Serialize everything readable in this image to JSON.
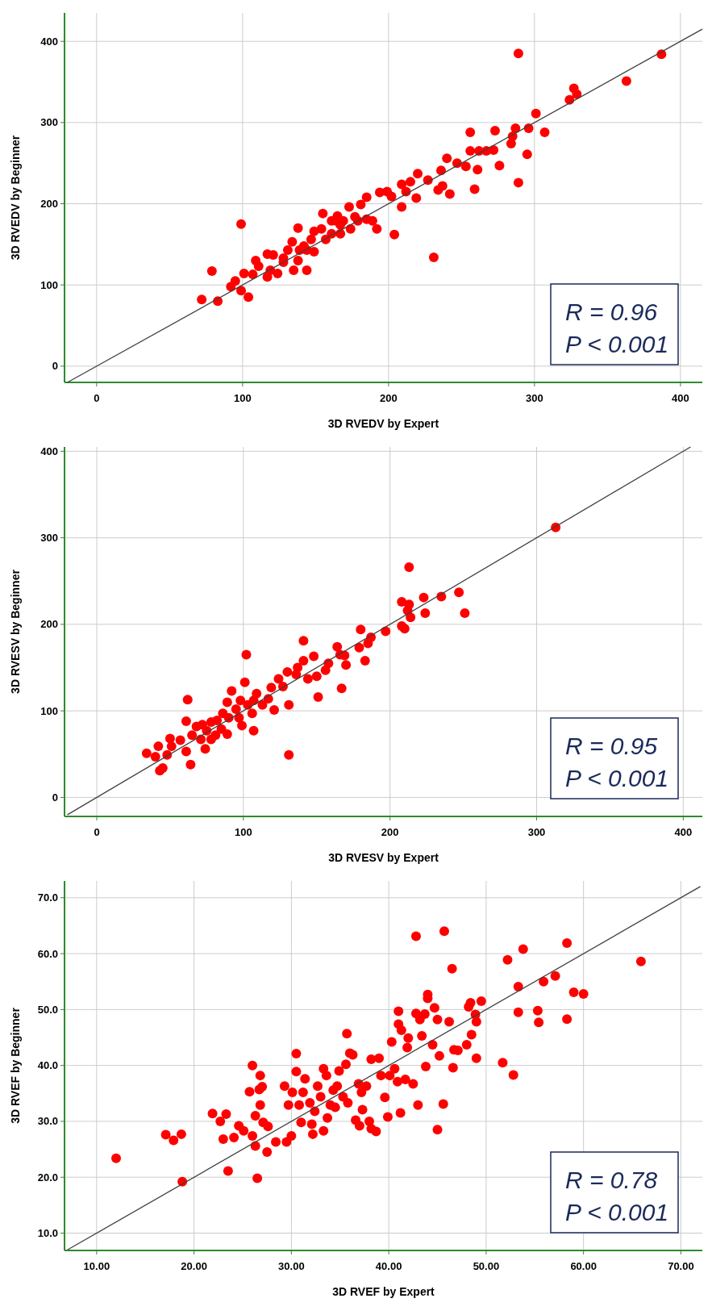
{
  "chart_data": [
    {
      "type": "scatter",
      "xlabel": "3D RVEDV by Expert",
      "ylabel": "3D RVEDV by Beginner",
      "xlim": [
        -22,
        415
      ],
      "ylim": [
        -20,
        435
      ],
      "xticks": [
        0,
        100,
        200,
        300,
        400
      ],
      "yticks": [
        0,
        100,
        200,
        300,
        400
      ],
      "grid": true,
      "marker": "circle",
      "annotations": [
        "R = 0.96",
        "P < 0.001"
      ],
      "series": [
        {
          "type": "scatter",
          "color": "#ff0000",
          "x": [
            72,
            79,
            83,
            92,
            95,
            99,
            99,
            101,
            104,
            107,
            109,
            111,
            117,
            117,
            121,
            119,
            124,
            128,
            131,
            134,
            135,
            138,
            138,
            139,
            142,
            144,
            147,
            149,
            149,
            154,
            155,
            157,
            161,
            164,
            165,
            167,
            169,
            173,
            174,
            177,
            181,
            185,
            185,
            189,
            192,
            194,
            199,
            202,
            204,
            209,
            209,
            212,
            215,
            219,
            220,
            227,
            231,
            234,
            236,
            237,
            242,
            240,
            247,
            253,
            256,
            256,
            259,
            261,
            262,
            267,
            272,
            273,
            276,
            284,
            285,
            287,
            289,
            289,
            295,
            296,
            301,
            307,
            324,
            327,
            329,
            363,
            387,
            128,
            161,
            179,
            144,
            167
          ],
          "values": [
            82,
            117,
            80,
            98,
            105,
            93,
            175,
            114,
            85,
            113,
            130,
            123,
            138,
            110,
            137,
            118,
            114,
            133,
            143,
            153,
            118,
            130,
            170,
            143,
            148,
            118,
            156,
            141,
            166,
            169,
            188,
            156,
            163,
            179,
            185,
            174,
            179,
            196,
            169,
            184,
            199,
            208,
            181,
            179,
            169,
            214,
            215,
            209,
            162,
            196,
            224,
            215,
            227,
            207,
            237,
            229,
            134,
            217,
            241,
            222,
            212,
            256,
            250,
            246,
            288,
            265,
            218,
            242,
            265,
            265,
            266,
            290,
            247,
            274,
            283,
            293,
            385,
            226,
            261,
            293,
            311,
            288,
            328,
            342,
            335,
            351,
            384,
            128,
            179,
            179,
            143,
            163
          ]
        },
        {
          "type": "line",
          "marker": "none",
          "color": "#404040",
          "x": [
            -20,
            415
          ],
          "values": [
            -20,
            415
          ]
        }
      ]
    },
    {
      "type": "scatter",
      "xlabel": "3D RVESV by Expert",
      "ylabel": "3D RVESV by Beginner",
      "xlim": [
        -22,
        413
      ],
      "ylim": [
        -22,
        405
      ],
      "xticks": [
        0,
        100,
        200,
        300,
        400
      ],
      "yticks": [
        0,
        100,
        200,
        300,
        400
      ],
      "grid": true,
      "marker": "circle",
      "annotations": [
        "R = 0.95",
        "P < 0.001"
      ],
      "series": [
        {
          "type": "scatter",
          "color": "#ff0000",
          "x": [
            34,
            40,
            42,
            43,
            45,
            48,
            50,
            51,
            57,
            61,
            62,
            61,
            64,
            65,
            68,
            71,
            72,
            74,
            75,
            78,
            81,
            82,
            85,
            86,
            89,
            89,
            90,
            92,
            95,
            98,
            99,
            101,
            102,
            103,
            106,
            107,
            107,
            109,
            113,
            117,
            119,
            121,
            124,
            127,
            130,
            131,
            131,
            136,
            137,
            141,
            141,
            144,
            148,
            150,
            151,
            156,
            158,
            164,
            166,
            167,
            169,
            170,
            179,
            180,
            183,
            185,
            187,
            197,
            208,
            208,
            210,
            212,
            213,
            213,
            214,
            223,
            224,
            235,
            247,
            251,
            313,
            97,
            78
          ],
          "values": [
            51,
            47,
            59,
            31,
            34,
            49,
            68,
            59,
            66,
            53,
            113,
            88,
            38,
            72,
            82,
            67,
            84,
            56,
            77,
            87,
            72,
            89,
            79,
            97,
            73,
            110,
            92,
            123,
            102,
            112,
            83,
            133,
            165,
            107,
            97,
            77,
            112,
            120,
            107,
            114,
            127,
            101,
            137,
            128,
            145,
            107,
            49,
            142,
            150,
            181,
            158,
            137,
            163,
            140,
            116,
            147,
            155,
            174,
            165,
            126,
            164,
            153,
            173,
            194,
            158,
            178,
            185,
            192,
            198,
            226,
            195,
            216,
            266,
            223,
            208,
            231,
            213,
            232,
            237,
            213,
            312,
            92,
            67
          ]
        },
        {
          "type": "line",
          "marker": "none",
          "color": "#404040",
          "x": [
            -20,
            405
          ],
          "values": [
            -20,
            405
          ]
        }
      ]
    },
    {
      "type": "scatter",
      "xlabel": "3D RVEF by Expert",
      "ylabel": "3D RVEF by Beginner",
      "xlim": [
        6.7,
        72.2
      ],
      "ylim": [
        6.9,
        73
      ],
      "xticks": [
        {
          "value": 10,
          "label": "10.00"
        },
        {
          "value": 20,
          "label": "20.00"
        },
        {
          "value": 30,
          "label": "30.00"
        },
        {
          "value": 40,
          "label": "40.00"
        },
        {
          "value": 50,
          "label": "50.00"
        },
        {
          "value": 60,
          "label": "60.00"
        },
        {
          "value": 70,
          "label": "70.00"
        }
      ],
      "yticks": [
        {
          "value": 10,
          "label": "10.0"
        },
        {
          "value": 20,
          "label": "20.0"
        },
        {
          "value": 30,
          "label": "30.0"
        },
        {
          "value": 40,
          "label": "40.0"
        },
        {
          "value": 50,
          "label": "50.0"
        },
        {
          "value": 60,
          "label": "60.0"
        },
        {
          "value": 70,
          "label": "70.0"
        }
      ],
      "grid": true,
      "marker": "circle",
      "annotations": [
        "R = 0.78",
        "P < 0.001"
      ],
      "series": [
        {
          "type": "scatter",
          "color": "#ff0000",
          "x": [
            12.0,
            17.1,
            17.9,
            18.7,
            18.8,
            21.9,
            22.7,
            23.0,
            23.3,
            23.5,
            24.1,
            24.6,
            25.1,
            25.7,
            26.0,
            26.0,
            26.3,
            26.3,
            26.5,
            26.7,
            26.8,
            26.8,
            27.0,
            27.1,
            27.5,
            27.6,
            28.4,
            29.3,
            29.5,
            29.7,
            30.0,
            30.1,
            30.5,
            30.5,
            30.8,
            31.0,
            31.2,
            31.4,
            31.9,
            32.1,
            32.2,
            32.4,
            32.7,
            33.0,
            33.3,
            33.3,
            33.6,
            33.7,
            34.0,
            34.3,
            34.5,
            34.7,
            34.9,
            35.3,
            35.6,
            35.7,
            35.8,
            36.0,
            36.3,
            36.6,
            36.9,
            37.0,
            37.2,
            37.3,
            37.7,
            38.0,
            38.2,
            38.2,
            38.7,
            39.0,
            39.2,
            39.6,
            39.9,
            40.1,
            40.3,
            40.6,
            40.9,
            41.0,
            41.0,
            41.2,
            41.3,
            41.7,
            41.9,
            42.0,
            42.5,
            42.8,
            42.8,
            43.0,
            43.2,
            43.4,
            43.7,
            43.8,
            44.0,
            44.0,
            44.5,
            44.7,
            45.0,
            45.0,
            45.2,
            45.6,
            45.7,
            46.2,
            46.5,
            46.6,
            46.7,
            47.1,
            48.0,
            48.2,
            48.4,
            48.5,
            48.9,
            49.0,
            49.0,
            49.5,
            51.7,
            52.2,
            52.8,
            53.3,
            53.3,
            53.8,
            55.3,
            55.4,
            55.9,
            57.1,
            58.3,
            58.3,
            59.0,
            60.0,
            65.9
          ],
          "values": [
            23.4,
            27.6,
            26.6,
            27.7,
            19.2,
            31.4,
            30.0,
            26.8,
            31.3,
            21.1,
            27.1,
            29.2,
            28.3,
            35.3,
            40.0,
            27.4,
            31.0,
            25.6,
            19.8,
            35.7,
            32.9,
            38.2,
            36.2,
            29.8,
            24.5,
            29.1,
            26.3,
            36.3,
            26.3,
            32.9,
            27.4,
            35.2,
            42.1,
            38.9,
            32.9,
            29.8,
            35.2,
            37.6,
            33.3,
            29.5,
            27.7,
            31.8,
            36.3,
            34.4,
            39.4,
            28.3,
            38.2,
            30.6,
            32.9,
            35.6,
            32.5,
            36.3,
            39.0,
            34.4,
            40.2,
            45.7,
            33.3,
            42.2,
            41.9,
            30.2,
            36.7,
            29.2,
            35.2,
            32.1,
            36.3,
            30.0,
            28.7,
            41.1,
            28.2,
            41.3,
            38.2,
            34.3,
            30.8,
            38.2,
            44.2,
            39.4,
            37.1,
            49.7,
            47.4,
            31.5,
            46.3,
            37.5,
            43.2,
            44.9,
            36.7,
            63.1,
            49.3,
            32.9,
            48.2,
            45.3,
            49.2,
            39.8,
            52.7,
            52.0,
            43.7,
            50.3,
            48.2,
            28.5,
            41.7,
            33.1,
            64.0,
            47.8,
            57.3,
            39.6,
            42.8,
            42.7,
            43.7,
            50.5,
            51.2,
            45.5,
            49.1,
            47.8,
            41.3,
            51.5,
            40.5,
            58.9,
            38.3,
            54.1,
            49.5,
            60.8,
            49.8,
            47.7,
            55.0,
            56.0,
            61.9,
            48.3,
            53.1,
            52.8,
            58.6
          ]
        },
        {
          "type": "line",
          "marker": "none",
          "color": "#404040",
          "x": [
            7,
            72
          ],
          "values": [
            7,
            72
          ]
        }
      ]
    }
  ]
}
